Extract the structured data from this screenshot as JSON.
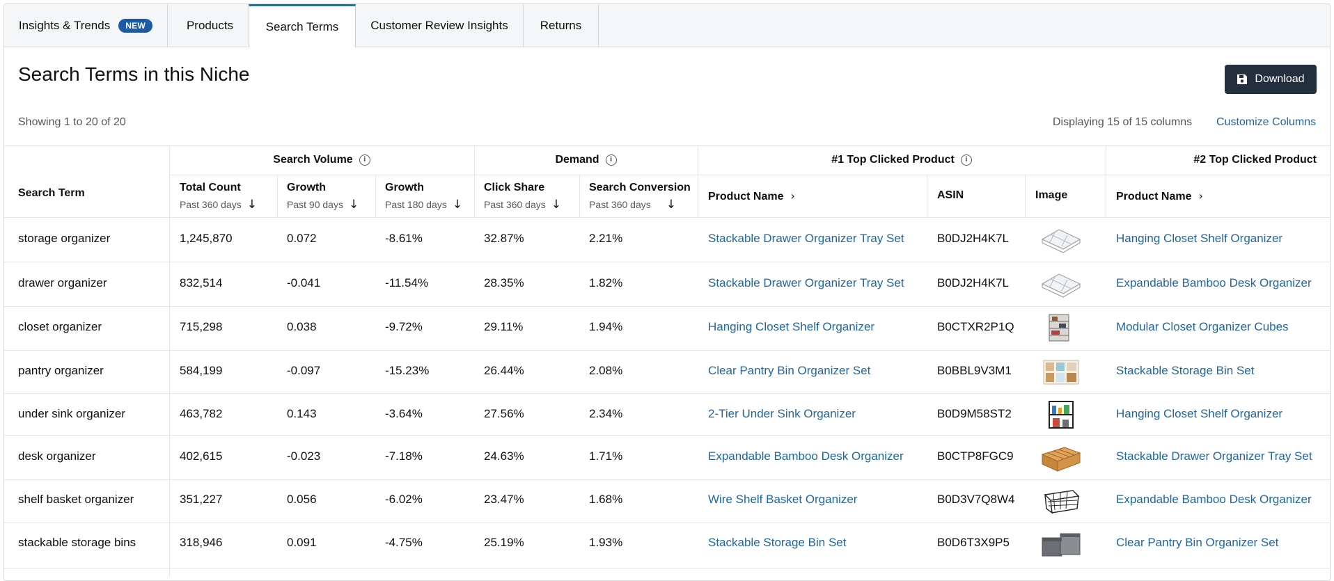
{
  "tabs": [
    {
      "label": "Insights & Trends",
      "badge": "NEW"
    },
    {
      "label": "Products"
    },
    {
      "label": "Search Terms"
    },
    {
      "label": "Customer Review Insights"
    },
    {
      "label": "Returns"
    }
  ],
  "page_title": "Search Terms in this Niche",
  "download_label": "Download",
  "showing_text": "Showing 1 to 20 of 20",
  "displaying_text": "Displaying 15 of 15 columns",
  "customize_label": "Customize Columns",
  "groups": {
    "search_volume": "Search Volume",
    "demand": "Demand",
    "top1": "#1 Top Clicked Product",
    "top2": "#2 Top Clicked Product"
  },
  "columns": {
    "search_term": "Search Term",
    "total_count": {
      "label": "Total Count",
      "sub": "Past 360 days"
    },
    "growth90": {
      "label": "Growth",
      "sub": "Past 90 days"
    },
    "growth180": {
      "label": "Growth",
      "sub": "Past 180 days"
    },
    "click_share": {
      "label": "Click Share",
      "sub": "Past 360 days"
    },
    "search_conversion": {
      "label": "Search Conversion",
      "sub": "Past 360 days"
    },
    "product_name": "Product Name",
    "asin": "ASIN",
    "image": "Image",
    "product_name2": "Product Name"
  },
  "rows": [
    {
      "term": "storage organizer",
      "total": "1,245,870",
      "g90": "0.072",
      "g180": "-8.61%",
      "click": "32.87%",
      "conv": "2.21%",
      "p1": "Stackable Drawer Organizer Tray Set",
      "asin": "B0DJ2H4K7L",
      "img": "drawer-tray",
      "p2": "Hanging Closet Shelf Organizer"
    },
    {
      "term": "drawer organizer",
      "total": "832,514",
      "g90": "-0.041",
      "g180": "-11.54%",
      "click": "28.35%",
      "conv": "1.82%",
      "p1": "Stackable Drawer Organizer Tray Set",
      "asin": "B0DJ2H4K7L",
      "img": "drawer-tray",
      "p2": "Expandable Bamboo Desk Organizer"
    },
    {
      "term": "closet organizer",
      "total": "715,298",
      "g90": "0.038",
      "g180": "-9.72%",
      "click": "29.11%",
      "conv": "1.94%",
      "p1": "Hanging Closet Shelf Organizer",
      "asin": "B0CTXR2P1Q",
      "img": "closet-shelf",
      "p2": "Modular Closet Organizer Cubes"
    },
    {
      "term": "pantry organizer",
      "total": "584,199",
      "g90": "-0.097",
      "g180": "-15.23%",
      "click": "26.44%",
      "conv": "2.08%",
      "p1": "Clear Pantry Bin Organizer Set",
      "asin": "B0BBL9V3M1",
      "img": "pantry-bins",
      "p2": "Stackable Storage Bin Set"
    },
    {
      "term": "under sink organizer",
      "total": "463,782",
      "g90": "0.143",
      "g180": "-3.64%",
      "click": "27.56%",
      "conv": "2.34%",
      "p1": "2-Tier Under Sink Organizer",
      "asin": "B0D9M58ST2",
      "img": "sink-rack",
      "p2": "Hanging Closet Shelf Organizer"
    },
    {
      "term": "desk organizer",
      "total": "402,615",
      "g90": "-0.023",
      "g180": "-7.18%",
      "click": "24.63%",
      "conv": "1.71%",
      "p1": "Expandable Bamboo Desk Organizer",
      "asin": "B0CTP8FGC9",
      "img": "bamboo-desk",
      "p2": "Stackable Drawer Organizer Tray Set"
    },
    {
      "term": "shelf basket organizer",
      "total": "351,227",
      "g90": "0.056",
      "g180": "-6.02%",
      "click": "23.47%",
      "conv": "1.68%",
      "p1": "Wire Shelf Basket Organizer",
      "asin": "B0D3V7Q8W4",
      "img": "wire-basket",
      "p2": "Expandable Bamboo Desk Organizer"
    },
    {
      "term": "stackable storage bins",
      "total": "318,946",
      "g90": "0.091",
      "g180": "-4.75%",
      "click": "25.19%",
      "conv": "1.93%",
      "p1": "Stackable Storage Bin Set",
      "asin": "B0D6T3X9P5",
      "img": "storage-bins",
      "p2": "Clear Pantry Bin Organizer Set"
    }
  ],
  "colors": {
    "accent": "#1f66a3",
    "badge": "#1d5aa5",
    "button": "#232f3e"
  }
}
